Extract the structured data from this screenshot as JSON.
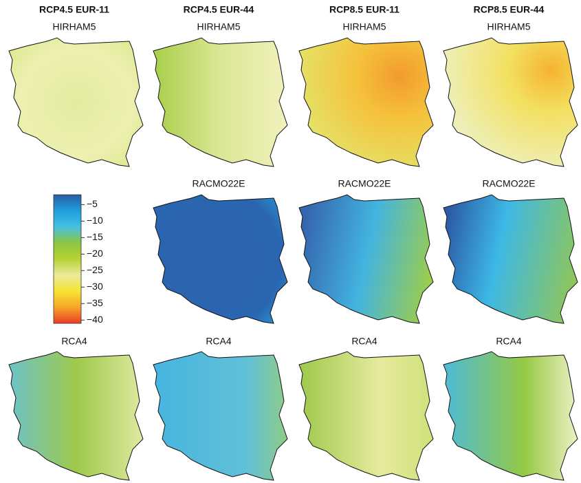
{
  "columns": [
    "RCP4.5 EUR-11",
    "RCP4.5 EUR-44",
    "RCP8.5 EUR-11",
    "RCP8.5 EUR-44"
  ],
  "rows": [
    {
      "labels": [
        "HIRHAM5",
        "HIRHAM5",
        "HIRHAM5",
        "HIRHAM5"
      ]
    },
    {
      "labels": [
        "RACMO22E",
        "RACMO22E",
        "RACMO22E"
      ]
    },
    {
      "labels": [
        "RCA4",
        "RCA4",
        "RCA4",
        "RCA4"
      ]
    }
  ],
  "colorbar": {
    "lim": [
      -41,
      -2
    ],
    "ticks": [
      {
        "value": -5,
        "label": "−5"
      },
      {
        "value": -10,
        "label": "−10"
      },
      {
        "value": -15,
        "label": "−15"
      },
      {
        "value": -20,
        "label": "−20"
      },
      {
        "value": -25,
        "label": "−25"
      },
      {
        "value": -30,
        "label": "−30"
      },
      {
        "value": -35,
        "label": "−35"
      },
      {
        "value": -40,
        "label": "−40"
      }
    ],
    "colors": [
      "#2b5ba6",
      "#1e9fdc",
      "#45c0e2",
      "#8cc640",
      "#b6d335",
      "#eaeb9a",
      "#f5e433",
      "#f7a52a",
      "#ec3a26"
    ]
  }
}
